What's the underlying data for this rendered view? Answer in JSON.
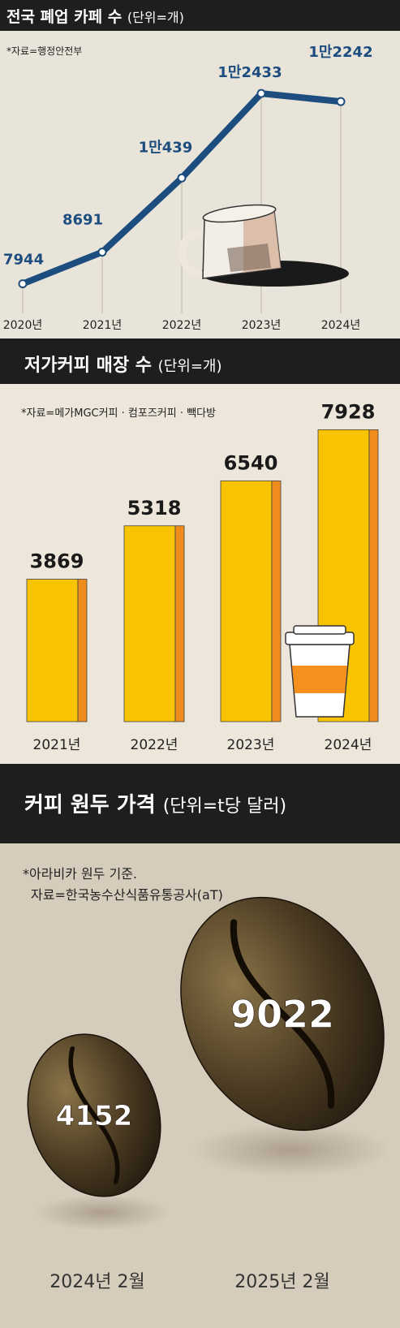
{
  "chart_data": [
    {
      "type": "line",
      "title": "전국 폐업 카페 수",
      "unit": "(단위=개)",
      "source": "*자료=행정안전부",
      "categories": [
        "2020년",
        "2021년",
        "2022년",
        "2023년",
        "2024년"
      ],
      "values": [
        7944,
        8691,
        10439,
        12433,
        12242
      ],
      "value_labels": [
        "7944",
        "8691",
        "1만439",
        "1만2433",
        "1만2242"
      ],
      "ylim": [
        7400,
        12800
      ]
    },
    {
      "type": "bar",
      "title": "저가커피 매장 수",
      "unit": "(단위=개)",
      "source": "*자료=메가MGC커피 · 컴포즈커피 · 빽다방",
      "categories": [
        "2021년",
        "2022년",
        "2023년",
        "2024년"
      ],
      "values": [
        3869,
        5318,
        6540,
        7928
      ],
      "value_labels": [
        "3869",
        "5318",
        "6540",
        "7928"
      ],
      "ylim": [
        0,
        9700
      ]
    },
    {
      "type": "bar",
      "title": "커피 원두 가격",
      "unit": "(단위=t당 달러)",
      "source_lines": [
        "*아라비카 원두 기준.",
        "자료=한국농수산식품유통공사(aT)"
      ],
      "categories": [
        "2024년 2월",
        "2025년 2월"
      ],
      "values": [
        4152,
        9022
      ],
      "value_labels": [
        "4152",
        "9022"
      ]
    }
  ],
  "colors": {
    "line": "#1c4d7e",
    "bar": "#f8c300",
    "bar_edge": "#f08c1e",
    "header_bg": "#1e1e1e",
    "panel1_bg": "#e9e4d9",
    "panel2_bg": "#ece6db",
    "panel3_bg": "#d6ccbc"
  }
}
